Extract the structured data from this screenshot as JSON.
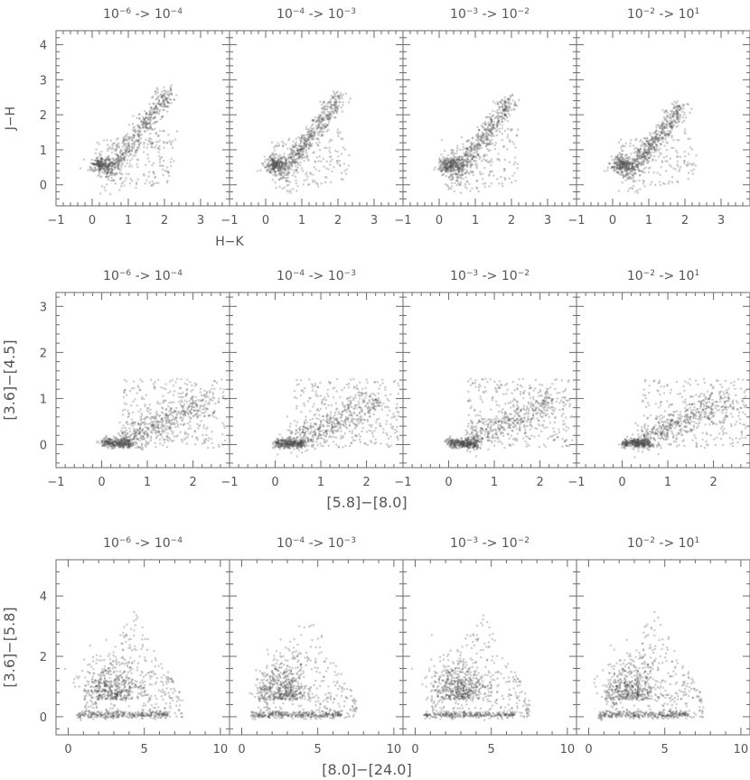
{
  "chart_data": [
    {
      "type": "scatter",
      "xlabel": "H−K",
      "ylabel": "J−H",
      "xlim": [
        -1,
        3.8
      ],
      "ylim": [
        -0.6,
        4.4
      ],
      "xticks": [
        "−1",
        "0",
        "1",
        "2",
        "3"
      ],
      "yticks": [
        "0",
        "1",
        "2",
        "3",
        "4"
      ],
      "panels": [
        {
          "title": {
            "b1": "10",
            "e1": "−6",
            "b2": "10",
            "e2": "−4"
          }
        },
        {
          "title": {
            "b1": "10",
            "e1": "−4",
            "b2": "10",
            "e2": "−3"
          }
        },
        {
          "title": {
            "b1": "10",
            "e1": "−3",
            "b2": "10",
            "e2": "−2"
          }
        },
        {
          "title": {
            "b1": "10",
            "e1": "−2",
            "b2": "10",
            "e2": "1"
          }
        }
      ],
      "density_shape": "diagonal band from (0.2, 0.6) to (2.0, 2.7), dense core near (0.3, 0.6)"
    },
    {
      "type": "scatter",
      "xlabel": "[5.8]−[8.0]",
      "ylabel": "[3.6]−[4.5]",
      "xlim": [
        -1,
        2.8
      ],
      "ylim": [
        -0.5,
        3.3
      ],
      "xticks": [
        "−1",
        "0",
        "1",
        "2"
      ],
      "yticks": [
        "0",
        "1",
        "2",
        "3"
      ],
      "panels": [
        {
          "title": {
            "b1": "10",
            "e1": "−6",
            "b2": "10",
            "e2": "−4"
          }
        },
        {
          "title": {
            "b1": "10",
            "e1": "−4",
            "b2": "10",
            "e2": "−3"
          }
        },
        {
          "title": {
            "b1": "10",
            "e1": "−3",
            "b2": "10",
            "e2": "−2"
          }
        },
        {
          "title": {
            "b1": "10",
            "e1": "−2",
            "b2": "10",
            "e2": "1"
          }
        }
      ],
      "density_shape": "horizontal clump near (0.1, 0.05) plus band from (0.4, 0.1) to (2.2, 1.0)"
    },
    {
      "type": "scatter",
      "xlabel": "[8.0]−[24.0]",
      "ylabel": "[3.6]−[5.8]",
      "xlim": [
        -0.8,
        10.6
      ],
      "ylim": [
        -0.6,
        5.2
      ],
      "xticks": [
        "0",
        "5",
        "10"
      ],
      "yticks": [
        "0",
        "2",
        "4"
      ],
      "panels": [
        {
          "title": {
            "b1": "10",
            "e1": "−6",
            "b2": "10",
            "e2": "−4"
          }
        },
        {
          "title": {
            "b1": "10",
            "e1": "−4",
            "b2": "10",
            "e2": "−3"
          }
        },
        {
          "title": {
            "b1": "10",
            "e1": "−3",
            "b2": "10",
            "e2": "−2"
          }
        },
        {
          "title": {
            "b1": "10",
            "e1": "−2",
            "b2": "10",
            "e2": "1"
          }
        }
      ],
      "density_shape": "triangular cloud peaking near (3, 0.5), extending up to y≈3.5 and x≈7"
    }
  ],
  "colors": {
    "points": "#4a4a4a",
    "frame": "#6a6a6a",
    "text": "#555555"
  }
}
